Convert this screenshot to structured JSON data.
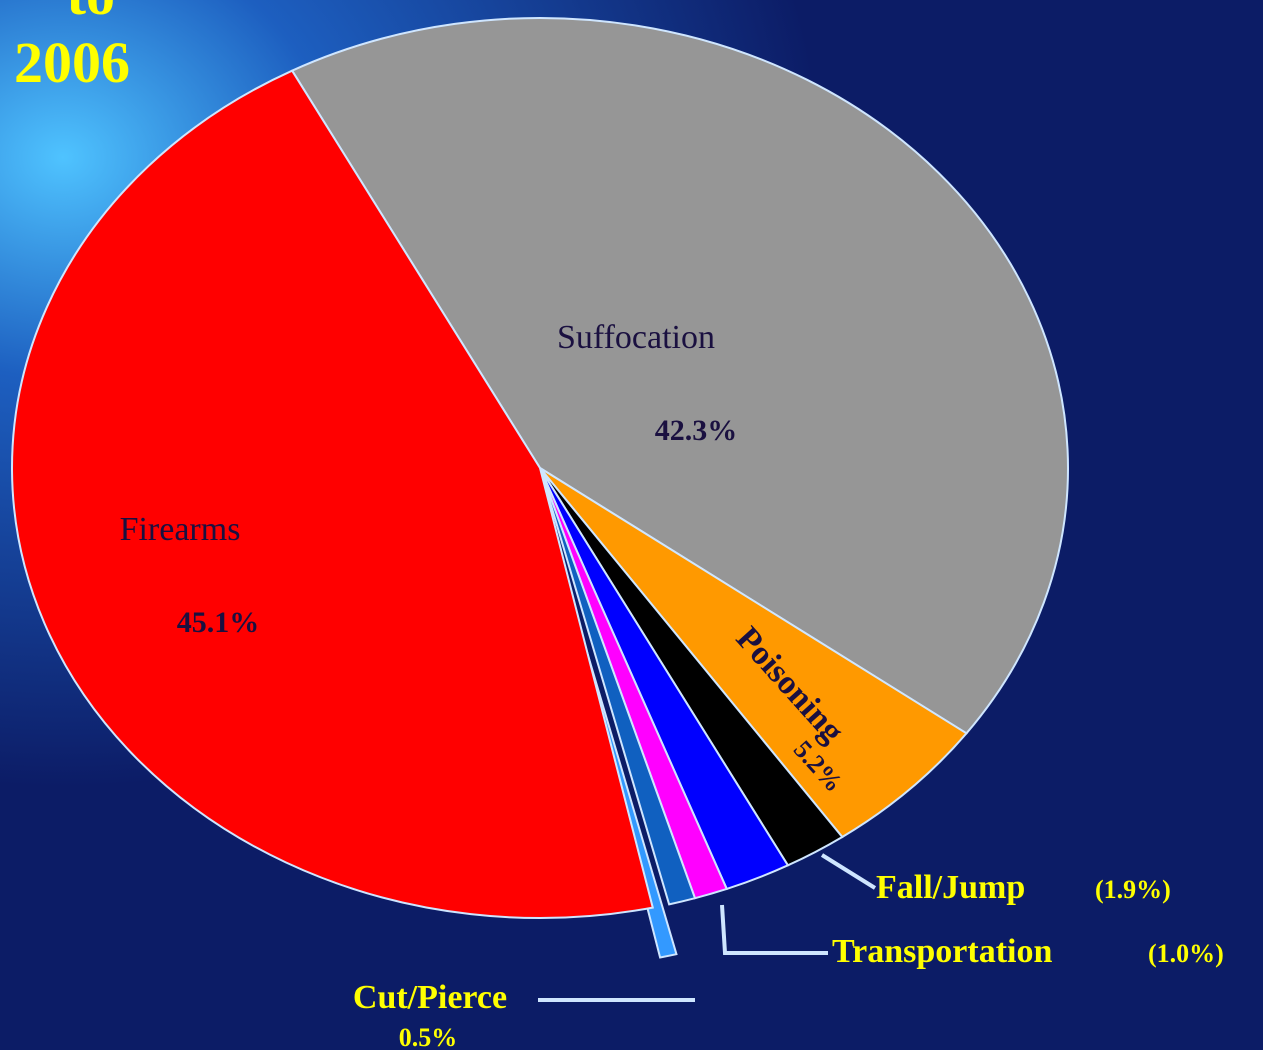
{
  "chart_data": {
    "type": "pie",
    "title_lines": [
      "to",
      "2006"
    ],
    "categories": [
      "Suffocation",
      "Poisoning",
      "Fall/Jump",
      null,
      "Transportation",
      null,
      "Cut/Pierce",
      "Firearms"
    ],
    "values": [
      42.3,
      5.2,
      1.9,
      2.0,
      1.0,
      0.8,
      0.5,
      45.1
    ],
    "value_labels": [
      "42.3%",
      "5.2%",
      "(1.9%)",
      null,
      "(1.0%)",
      null,
      "0.5%",
      "45.1%"
    ],
    "colors": [
      "#969696",
      "#ff9900",
      "#000000",
      "#0000ff",
      "#ff00ff",
      "#1060c0",
      "#3399ff",
      "#ff0000"
    ]
  }
}
